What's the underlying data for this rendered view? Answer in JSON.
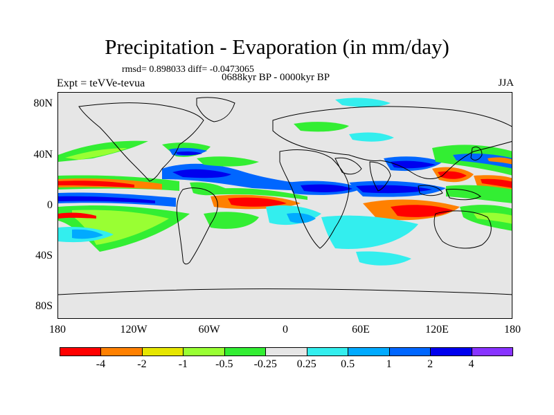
{
  "header": {
    "title": "Precipitation - Evaporation (in mm/day)",
    "stats": "rmsd= 0.898033 diff= -0.0473065",
    "period": "0688kyr BP - 0000kyr BP",
    "experiment": "Expt = teVVe-tevua",
    "season": "JJA"
  },
  "axes": {
    "y_ticks": [
      "80N",
      "40N",
      "0",
      "40S",
      "80S"
    ],
    "x_ticks": [
      "180",
      "120W",
      "60W",
      "0",
      "60E",
      "120E",
      "180"
    ]
  },
  "colorbar": {
    "colors": [
      "#ff0000",
      "#ff8000",
      "#e6e600",
      "#99ff33",
      "#33ee33",
      "#e6e6e6",
      "#33eeee",
      "#00aaff",
      "#0066ff",
      "#0000ee",
      "#8833ff"
    ],
    "labels": [
      "-4",
      "-2",
      "-1",
      "-0.5",
      "-0.25",
      "0.25",
      "0.5",
      "1",
      "2",
      "4"
    ]
  }
}
